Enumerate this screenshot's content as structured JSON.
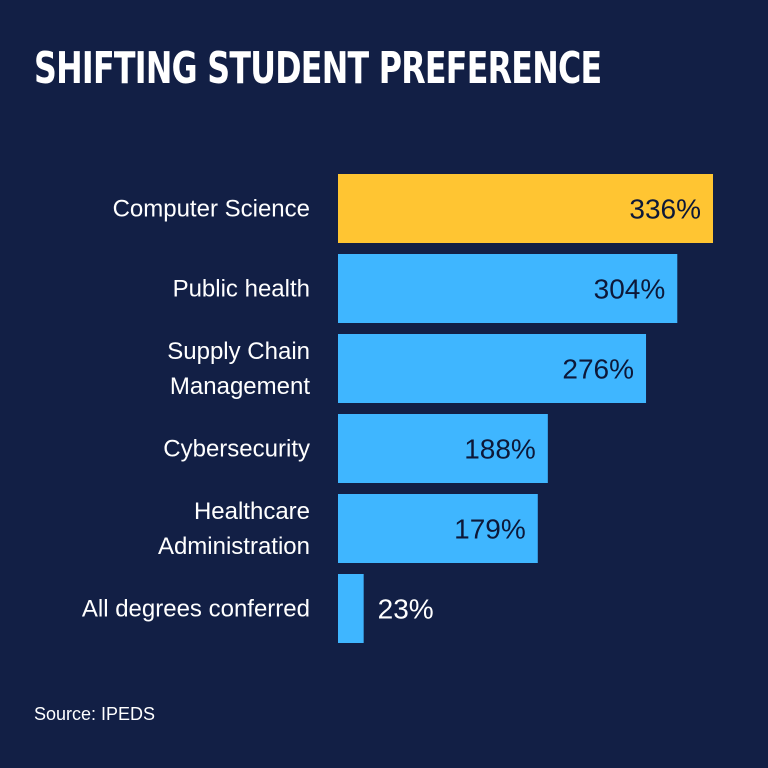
{
  "colors": {
    "background": "#121f45",
    "bar": "#3fb6ff",
    "highlight": "#ffc532",
    "text": "#ffffff",
    "value_text_inside": "#0d1838"
  },
  "chart_data": {
    "type": "bar",
    "orientation": "horizontal",
    "title": "SHIFTING STUDENT PREFERENCE",
    "categories": [
      [
        "Computer Science"
      ],
      [
        "Public health"
      ],
      [
        "Supply Chain",
        "Management"
      ],
      [
        "Cybersecurity"
      ],
      [
        "Healthcare",
        "Administration"
      ],
      [
        "All degrees conferred"
      ]
    ],
    "values": [
      336,
      304,
      276,
      188,
      179,
      23
    ],
    "value_labels": [
      "336%",
      "304%",
      "276%",
      "188%",
      "179%",
      "23%"
    ],
    "highlight_index": 0,
    "xlim": [
      0,
      336
    ],
    "grid": false,
    "legend": "none"
  },
  "source": "Source: IPEDS"
}
